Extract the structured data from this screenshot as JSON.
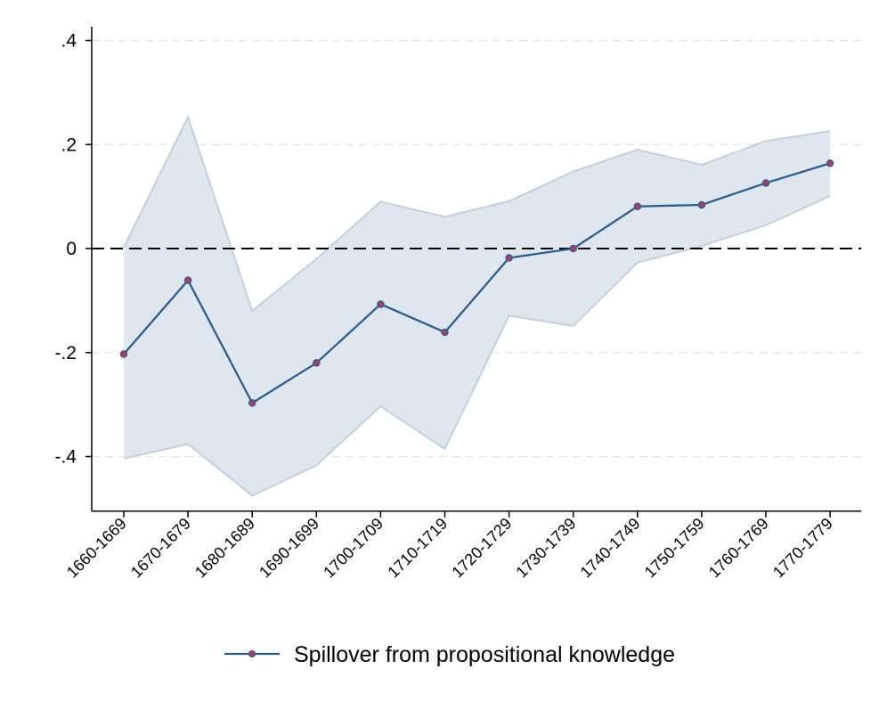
{
  "chart_data": {
    "type": "line",
    "title": "",
    "xlabel": "",
    "ylabel": "",
    "categories": [
      "1660-1669",
      "1670-1679",
      "1680-1689",
      "1690-1699",
      "1700-1709",
      "1710-1719",
      "1720-1729",
      "1730-1739",
      "1740-1749",
      "1750-1759",
      "1760-1769",
      "1770-1779"
    ],
    "yticks": [
      -0.4,
      -0.2,
      0,
      0.2,
      0.4
    ],
    "ytick_labels": [
      "-.4",
      "-.2",
      "0",
      ".2",
      ".4"
    ],
    "ylim": [
      -0.505,
      0.43
    ],
    "grid": true,
    "reference_line": {
      "y": 0,
      "style": "dashed"
    },
    "legend_position": "bottom-center",
    "series": [
      {
        "name": "Spillover from propositional knowledge",
        "values": [
          -0.203,
          -0.061,
          -0.297,
          -0.22,
          -0.107,
          -0.161,
          -0.018,
          0.0,
          0.081,
          0.084,
          0.126,
          0.164
        ],
        "ci_lower": [
          -0.404,
          -0.376,
          -0.475,
          -0.417,
          -0.303,
          -0.385,
          -0.129,
          -0.149,
          -0.027,
          0.005,
          0.045,
          0.101
        ],
        "ci_upper": [
          0.002,
          0.253,
          -0.12,
          -0.02,
          0.09,
          0.061,
          0.091,
          0.148,
          0.19,
          0.161,
          0.207,
          0.226
        ],
        "line_color": "#2c5d8f",
        "marker_color": "#b03a62",
        "band_color": "#dfe6ee",
        "band_edge_color": "#c2d0de"
      }
    ]
  }
}
